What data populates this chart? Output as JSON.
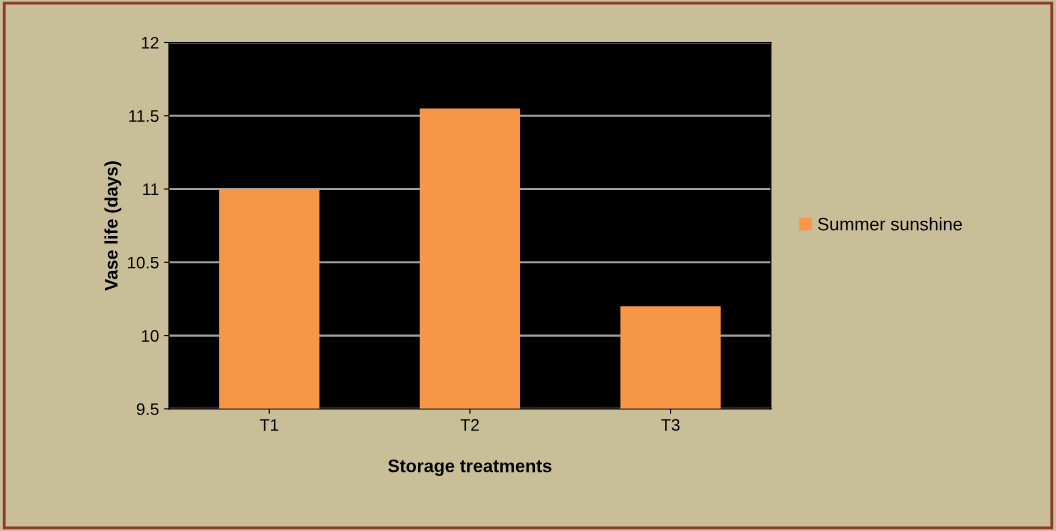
{
  "chart_data": {
    "type": "bar",
    "xlabel": "Storage treatments",
    "ylabel": "Vase life (days)",
    "categories": [
      "T1",
      "T2",
      "T3"
    ],
    "series": [
      {
        "name": "Summer sunshine",
        "color": "#f79646",
        "values": [
          11.0,
          11.55,
          10.2
        ]
      }
    ],
    "ylim": [
      9.5,
      12
    ],
    "yticks": [
      9.5,
      10,
      10.5,
      11,
      11.5,
      12
    ],
    "grid": "y",
    "legend": "right"
  }
}
